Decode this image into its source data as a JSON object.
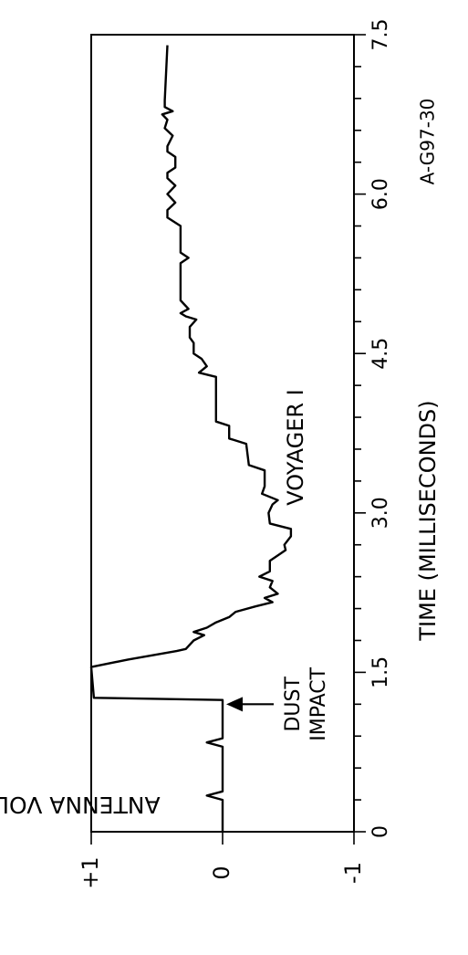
{
  "chart_data": {
    "type": "line",
    "orientation": "rotated-90-ccw",
    "title": "VOYAGER I",
    "figure_id": "A-G97-30",
    "xlabel": "TIME (MILLISECONDS)",
    "ylabel": "ANTENNA VOLTAGE",
    "xlim": [
      0,
      7.5
    ],
    "ylim": [
      -1,
      1
    ],
    "x_ticks": [
      0,
      1.5,
      3.0,
      4.5,
      6.0,
      7.5
    ],
    "x_tick_labels": [
      "0",
      "1.5",
      "3.0",
      "4.5",
      "6.0",
      "7.5"
    ],
    "y_ticks": [
      1,
      0,
      -1
    ],
    "y_tick_labels": [
      "+1",
      "0",
      "-1"
    ],
    "annotation": {
      "text_line1": "DUST",
      "text_line2": "IMPACT",
      "x": 1.2,
      "y": 0
    },
    "series": [
      {
        "x": [
          0.0,
          0.3,
          0.34,
          0.38,
          0.44,
          0.8,
          0.84,
          0.88,
          0.94,
          1.24,
          1.26,
          1.55,
          1.62,
          1.7,
          1.72,
          1.8,
          1.85,
          1.88,
          1.92,
          1.97,
          2.02,
          2.07,
          2.12,
          2.16,
          2.2,
          2.24,
          2.3,
          2.36,
          2.4,
          2.45,
          2.55,
          2.6,
          2.65,
          2.7,
          2.78,
          2.85,
          2.9,
          3.0,
          3.08,
          3.12,
          3.18,
          3.25,
          3.4,
          3.45,
          3.65,
          3.7,
          3.82,
          3.86,
          4.1,
          4.28,
          4.32,
          4.38,
          4.45,
          4.5,
          4.6,
          4.65,
          4.75,
          4.82,
          4.85,
          4.88,
          4.92,
          5.0,
          5.08,
          5.35,
          5.4,
          5.45,
          5.5,
          5.7,
          5.78,
          5.85,
          5.92,
          6.0,
          6.08,
          6.15,
          6.2,
          6.25,
          6.35,
          6.4,
          6.45,
          6.55,
          6.62,
          6.7,
          6.75,
          6.78,
          6.82,
          6.88,
          7.4
        ],
        "y": [
          0.0,
          0.0,
          0.12,
          0.0,
          0.0,
          0.0,
          0.12,
          0.0,
          0.0,
          0.0,
          0.98,
          1.0,
          0.72,
          0.35,
          0.28,
          0.22,
          0.14,
          0.22,
          0.12,
          0.05,
          -0.05,
          -0.1,
          -0.25,
          -0.38,
          -0.32,
          -0.42,
          -0.36,
          -0.38,
          -0.28,
          -0.36,
          -0.36,
          -0.42,
          -0.48,
          -0.47,
          -0.52,
          -0.52,
          -0.36,
          -0.35,
          -0.38,
          -0.42,
          -0.3,
          -0.32,
          -0.32,
          -0.2,
          -0.18,
          -0.05,
          -0.05,
          0.05,
          0.05,
          0.05,
          0.18,
          0.12,
          0.16,
          0.22,
          0.22,
          0.25,
          0.25,
          0.2,
          0.28,
          0.32,
          0.26,
          0.32,
          0.32,
          0.32,
          0.26,
          0.32,
          0.32,
          0.32,
          0.42,
          0.42,
          0.36,
          0.42,
          0.36,
          0.42,
          0.42,
          0.36,
          0.36,
          0.42,
          0.42,
          0.38,
          0.44,
          0.42,
          0.46,
          0.38,
          0.44,
          0.44,
          0.42
        ]
      }
    ]
  }
}
